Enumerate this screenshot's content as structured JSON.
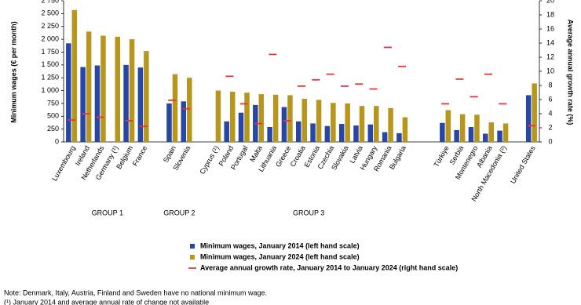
{
  "chart_data": {
    "type": "bar",
    "ylabel": "Minimum wages (€ per month)",
    "y2label": "Average annual growth rate (%)",
    "categories": [
      "Luxembourg",
      "Ireland",
      "Netherlands",
      "Germany (¹)",
      "Belgium",
      "France",
      null,
      "Spain",
      "Slovenia",
      null,
      "Cyprus (¹)",
      "Poland",
      "Portugal",
      "Malta",
      "Lithuania",
      "Greece",
      "Croatia",
      "Estonia",
      "Czechia",
      "Slovakia",
      "Latvia",
      "Hungary",
      "Romania",
      "Bulgaria",
      null,
      null,
      "Türkiye",
      "Serbia",
      "Montenegro",
      "Albania",
      "North Macedonia (²)",
      null,
      "United States"
    ],
    "series": [
      {
        "name": "Minimum wages, January 2014 (left hand scale)",
        "color": "#2747a6",
        "values": [
          1920,
          1460,
          1490,
          null,
          1500,
          1450,
          null,
          750,
          790,
          null,
          null,
          400,
          570,
          720,
          290,
          680,
          400,
          360,
          310,
          350,
          320,
          340,
          190,
          170,
          null,
          null,
          370,
          230,
          290,
          160,
          220,
          null,
          910
        ]
      },
      {
        "name": "Minimum wages, January 2024 (left hand scale)",
        "color": "#b8961e",
        "values": [
          2570,
          2150,
          2070,
          2050,
          2000,
          1770,
          null,
          1320,
          1250,
          null,
          1000,
          980,
          960,
          930,
          920,
          910,
          840,
          820,
          760,
          750,
          700,
          700,
          660,
          480,
          null,
          null,
          620,
          540,
          530,
          380,
          360,
          null,
          1140
        ]
      },
      {
        "name": "Average annual growth rate, January 2014 to January 2024 (right hand scale)",
        "color": "#e8353a",
        "axis": "y2",
        "values": [
          3.1,
          4.0,
          3.5,
          null,
          3.0,
          2.2,
          null,
          5.9,
          4.7,
          null,
          null,
          9.3,
          5.4,
          2.6,
          12.4,
          3.0,
          7.9,
          8.8,
          9.6,
          7.9,
          8.2,
          7.5,
          13.4,
          10.7,
          null,
          null,
          5.4,
          8.9,
          6.4,
          9.6,
          5.4,
          null,
          2.3
        ]
      }
    ],
    "ylim": [
      0,
      2750
    ],
    "yticks": [
      0,
      {
        "value": 250,
        "label": "250"
      },
      {
        "value": 500,
        "label": "500"
      },
      {
        "value": 750,
        "label": "750"
      },
      {
        "value": 1000,
        "label": "1 000"
      },
      {
        "value": 1250,
        "label": "1 250"
      },
      {
        "value": 1500,
        "label": "1 500"
      },
      {
        "value": 1750,
        "label": "1 750"
      },
      {
        "value": 2000,
        "label": "2 000"
      },
      {
        "value": 2250,
        "label": "2 250"
      },
      {
        "value": 2500,
        "label": "2 500"
      },
      {
        "value": 2750,
        "label": "2 750"
      }
    ],
    "y2lim": [
      0,
      20
    ],
    "y2ticks": [
      0,
      2,
      4,
      6,
      8,
      10,
      12,
      14,
      16,
      18,
      20
    ],
    "groups": [
      {
        "label": "GROUP 1",
        "at": 2.5
      },
      {
        "label": "GROUP 2",
        "at": 7.5
      },
      {
        "label": "GROUP 3",
        "at": 16.5
      }
    ],
    "notes": [
      "Note: Denmark, Italy, Austria, Finland and Sweden have no national minimum wage.",
      "(¹) January 2014 and average annual rate of change not available"
    ]
  }
}
